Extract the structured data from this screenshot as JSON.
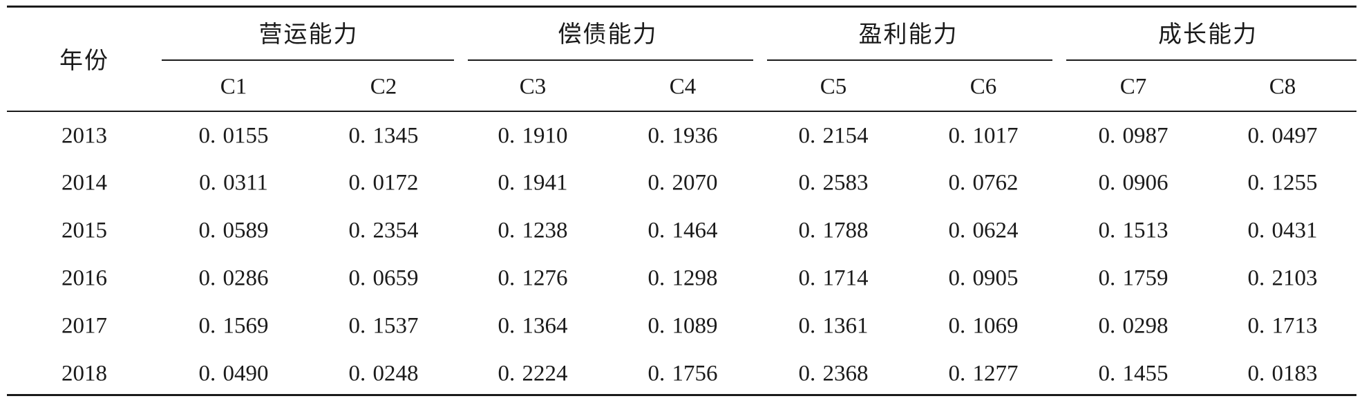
{
  "table": {
    "year_header": "年份",
    "groups": [
      {
        "label": "营运能力",
        "columns": [
          "C1",
          "C2"
        ]
      },
      {
        "label": "偿债能力",
        "columns": [
          "C3",
          "C4"
        ]
      },
      {
        "label": "盈利能力",
        "columns": [
          "C5",
          "C6"
        ]
      },
      {
        "label": "成长能力",
        "columns": [
          "C7",
          "C8"
        ]
      }
    ],
    "rows": [
      {
        "year": "2013",
        "values": [
          "0. 0155",
          "0. 1345",
          "0. 1910",
          "0. 1936",
          "0. 2154",
          "0. 1017",
          "0. 0987",
          "0. 0497"
        ]
      },
      {
        "year": "2014",
        "values": [
          "0. 0311",
          "0. 0172",
          "0. 1941",
          "0. 2070",
          "0. 2583",
          "0. 0762",
          "0. 0906",
          "0. 1255"
        ]
      },
      {
        "year": "2015",
        "values": [
          "0. 0589",
          "0. 2354",
          "0. 1238",
          "0. 1464",
          "0. 1788",
          "0. 0624",
          "0. 1513",
          "0. 0431"
        ]
      },
      {
        "year": "2016",
        "values": [
          "0. 0286",
          "0. 0659",
          "0. 1276",
          "0. 1298",
          "0. 1714",
          "0. 0905",
          "0. 1759",
          "0. 2103"
        ]
      },
      {
        "year": "2017",
        "values": [
          "0. 1569",
          "0. 1537",
          "0. 1364",
          "0. 1089",
          "0. 1361",
          "0. 1069",
          "0. 0298",
          "0. 1713"
        ]
      },
      {
        "year": "2018",
        "values": [
          "0. 0490",
          "0. 0248",
          "0. 2224",
          "0. 1756",
          "0. 2368",
          "0. 1277",
          "0. 1455",
          "0. 0183"
        ]
      }
    ]
  }
}
